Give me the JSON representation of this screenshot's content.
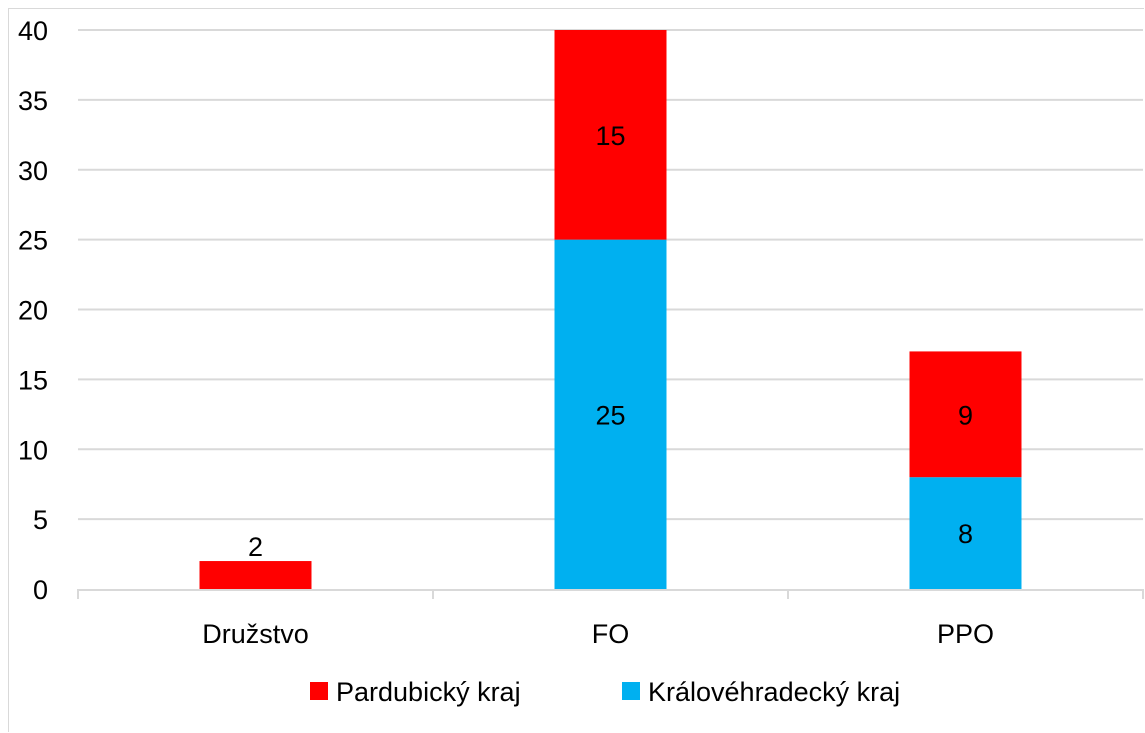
{
  "chart_data": {
    "type": "bar",
    "stacked": true,
    "categories": [
      "Družstvo",
      "FO",
      "PPO"
    ],
    "series": [
      {
        "name": "Královéhradecký kraj",
        "color": "#00b0f0",
        "values": [
          0,
          25,
          8
        ],
        "labels": [
          "",
          "25",
          "8"
        ]
      },
      {
        "name": "Pardubický kraj",
        "color": "#ff0000",
        "values": [
          2,
          15,
          9
        ],
        "labels": [
          "2",
          "15",
          "9"
        ]
      }
    ],
    "yticks": [
      "0",
      "5",
      "10",
      "15",
      "20",
      "25",
      "30",
      "35",
      "40"
    ],
    "ylim": [
      0,
      40
    ],
    "grid": true,
    "legend": {
      "position": "bottom",
      "order": [
        "Pardubický kraj",
        "Královéhradecký kraj"
      ]
    }
  }
}
